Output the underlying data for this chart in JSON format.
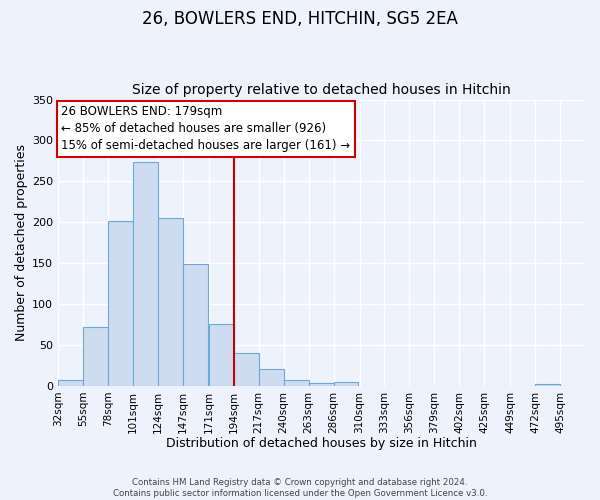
{
  "title": "26, BOWLERS END, HITCHIN, SG5 2EA",
  "subtitle": "Size of property relative to detached houses in Hitchin",
  "xlabel": "Distribution of detached houses by size in Hitchin",
  "ylabel": "Number of detached properties",
  "bin_labels": [
    "32sqm",
    "55sqm",
    "78sqm",
    "101sqm",
    "124sqm",
    "147sqm",
    "171sqm",
    "194sqm",
    "217sqm",
    "240sqm",
    "263sqm",
    "286sqm",
    "310sqm",
    "333sqm",
    "356sqm",
    "379sqm",
    "402sqm",
    "425sqm",
    "449sqm",
    "472sqm",
    "495sqm"
  ],
  "bar_heights": [
    7,
    72,
    201,
    274,
    205,
    149,
    75,
    40,
    20,
    7,
    4,
    5,
    0,
    0,
    0,
    0,
    0,
    0,
    0,
    2,
    0
  ],
  "bar_color": "#cddcf0",
  "bar_edge_color": "#6aaad4",
  "vline_color": "#cc0000",
  "annotation_text": "26 BOWLERS END: 179sqm\n← 85% of detached houses are smaller (926)\n15% of semi-detached houses are larger (161) →",
  "annotation_box_color": "#ffffff",
  "annotation_box_edge_color": "#cc0000",
  "footer_text": "Contains HM Land Registry data © Crown copyright and database right 2024.\nContains public sector information licensed under the Open Government Licence v3.0.",
  "ylim": [
    0,
    350
  ],
  "bin_edges": [
    32,
    55,
    78,
    101,
    124,
    147,
    171,
    194,
    217,
    240,
    263,
    286,
    310,
    333,
    356,
    379,
    402,
    425,
    449,
    472,
    495
  ],
  "bin_width": 23,
  "background_color": "#eef2fc",
  "grid_color": "#ffffff",
  "title_fontsize": 12,
  "subtitle_fontsize": 10,
  "axis_label_fontsize": 9,
  "tick_fontsize": 7.5,
  "annotation_fontsize": 8.5
}
